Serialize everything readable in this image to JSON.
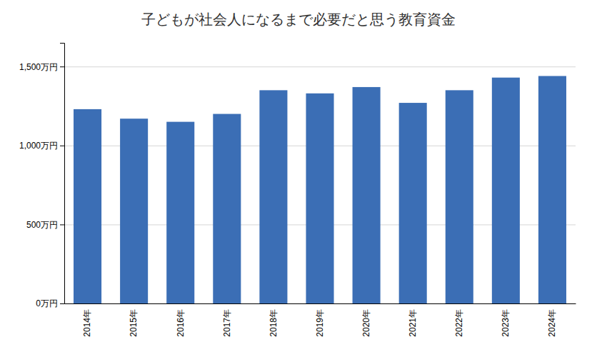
{
  "chart_data": {
    "type": "bar",
    "title": "子どもが社会人になるまで必要だと思う教育資金",
    "categories": [
      "2014年",
      "2015年",
      "2016年",
      "2017年",
      "2018年",
      "2019年",
      "2020年",
      "2021年",
      "2022年",
      "2023年",
      "2024年"
    ],
    "values": [
      1230,
      1170,
      1150,
      1200,
      1350,
      1330,
      1370,
      1270,
      1350,
      1430,
      1440
    ],
    "color": "#3B6EB5",
    "ylim": [
      0,
      1650
    ],
    "yticks": [
      {
        "value": 0,
        "label": "0万円"
      },
      {
        "value": 500,
        "label": "500万円"
      },
      {
        "value": 1000,
        "label": "1,000万円"
      },
      {
        "value": 1500,
        "label": "1,500万円"
      }
    ],
    "grid": true
  }
}
